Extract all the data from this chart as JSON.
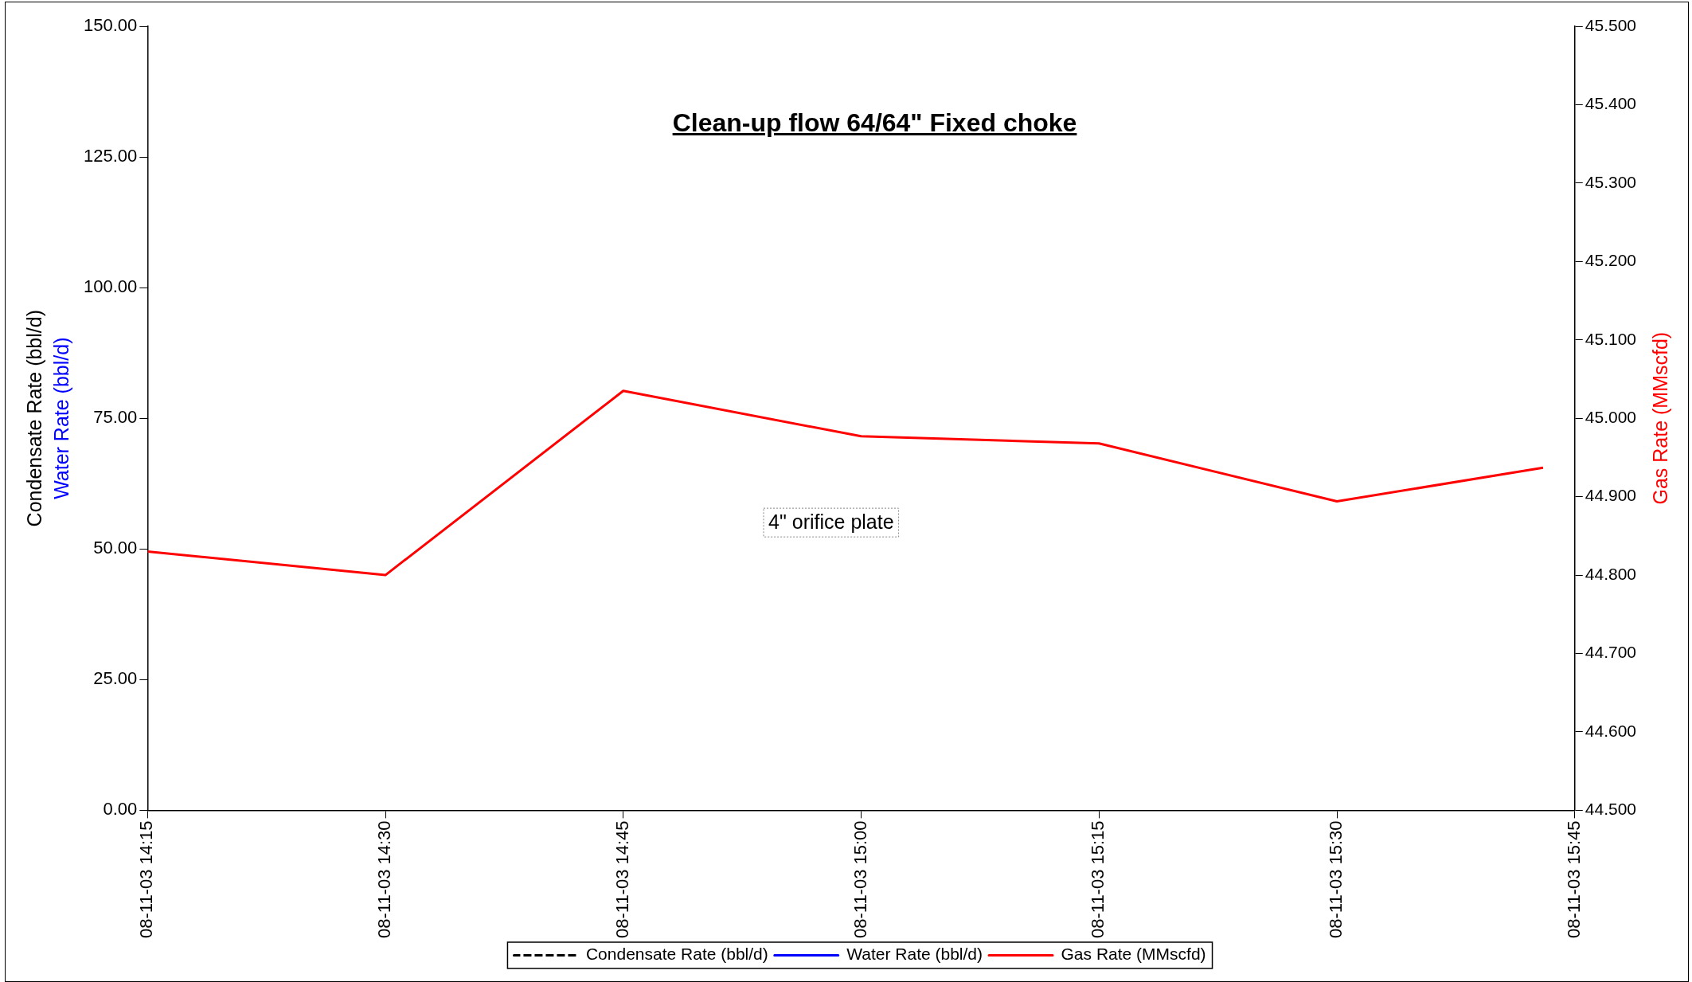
{
  "chart_data": {
    "type": "line",
    "title": "Clean-up flow 64/64\" Fixed choke",
    "ylabel": "Condensate Rate (bbl/d)\nWater Rate (bbl/d)",
    "y2label": "Gas Rate (MMscfd)",
    "x": [
      "--11-03T14:15",
      "--11-03T14:30",
      "--11-03T14:45",
      "--11-03T15:00",
      "--11-03T15:15",
      "--11-03T15:30",
      "--11-03T15:43"
    ],
    "series": [
      {
        "name": "Condensate Rate (bbl/d)",
        "color": "#000000",
        "line_style": "dashed",
        "axis": "y",
        "values": [
          null,
          null,
          null,
          null,
          null,
          null,
          null
        ]
      },
      {
        "name": "Water Rate (bbl/d)",
        "color": "#0000ff",
        "line_style": "solid",
        "axis": "y",
        "values": [
          null,
          null,
          null,
          null,
          null,
          null,
          null
        ]
      },
      {
        "name": "Gas Rate (MMscfd)",
        "color": "#ff0000",
        "line_style": "solid",
        "axis": "y2",
        "values": [
          44.83,
          44.8,
          45.035,
          44.977,
          44.968,
          44.894,
          44.937
        ]
      }
    ],
    "xlim": [
      "--11-03T14:15",
      "--11-03T15:45"
    ],
    "xticks": [
      {
        "value": "--11-03T14:15",
        "label": "08-11-03 14:15"
      },
      {
        "value": "--11-03T14:30",
        "label": "08-11-03 14:30"
      },
      {
        "value": "--11-03T14:45",
        "label": "08-11-03 14:45"
      },
      {
        "value": "--11-03T15:00",
        "label": "08-11-03 15:00"
      },
      {
        "value": "--11-03T15:15",
        "label": "08-11-03 15:15"
      },
      {
        "value": "--11-03T15:30",
        "label": "08-11-03 15:30"
      },
      {
        "value": "--11-03T15:45",
        "label": "08-11-03 15:45"
      }
    ],
    "ylim": [
      0,
      150
    ],
    "yticks": [
      {
        "value": 0,
        "label": "0.00"
      },
      {
        "value": 25,
        "label": "25.00"
      },
      {
        "value": 50,
        "label": "50.00"
      },
      {
        "value": 75,
        "label": "75.00"
      },
      {
        "value": 100,
        "label": "100.00"
      },
      {
        "value": 125,
        "label": "125.00"
      },
      {
        "value": 150,
        "label": "150.00"
      }
    ],
    "y2lim": [
      44.5,
      45.5
    ],
    "y2ticks": [
      {
        "value": 44.5,
        "label": "44.500"
      },
      {
        "value": 44.6,
        "label": "44.600"
      },
      {
        "value": 44.7,
        "label": "44.700"
      },
      {
        "value": 44.8,
        "label": "44.800"
      },
      {
        "value": 44.9,
        "label": "44.900"
      },
      {
        "value": 45.0,
        "label": "45.000"
      },
      {
        "value": 45.1,
        "label": "45.100"
      },
      {
        "value": 45.2,
        "label": "45.200"
      },
      {
        "value": 45.3,
        "label": "45.300"
      },
      {
        "value": 45.4,
        "label": "45.400"
      },
      {
        "value": 45.5,
        "label": "45.500"
      }
    ],
    "annotations": [
      "4\" orifice plate"
    ],
    "grid": false,
    "legend": "bottom",
    "marker": "none"
  }
}
